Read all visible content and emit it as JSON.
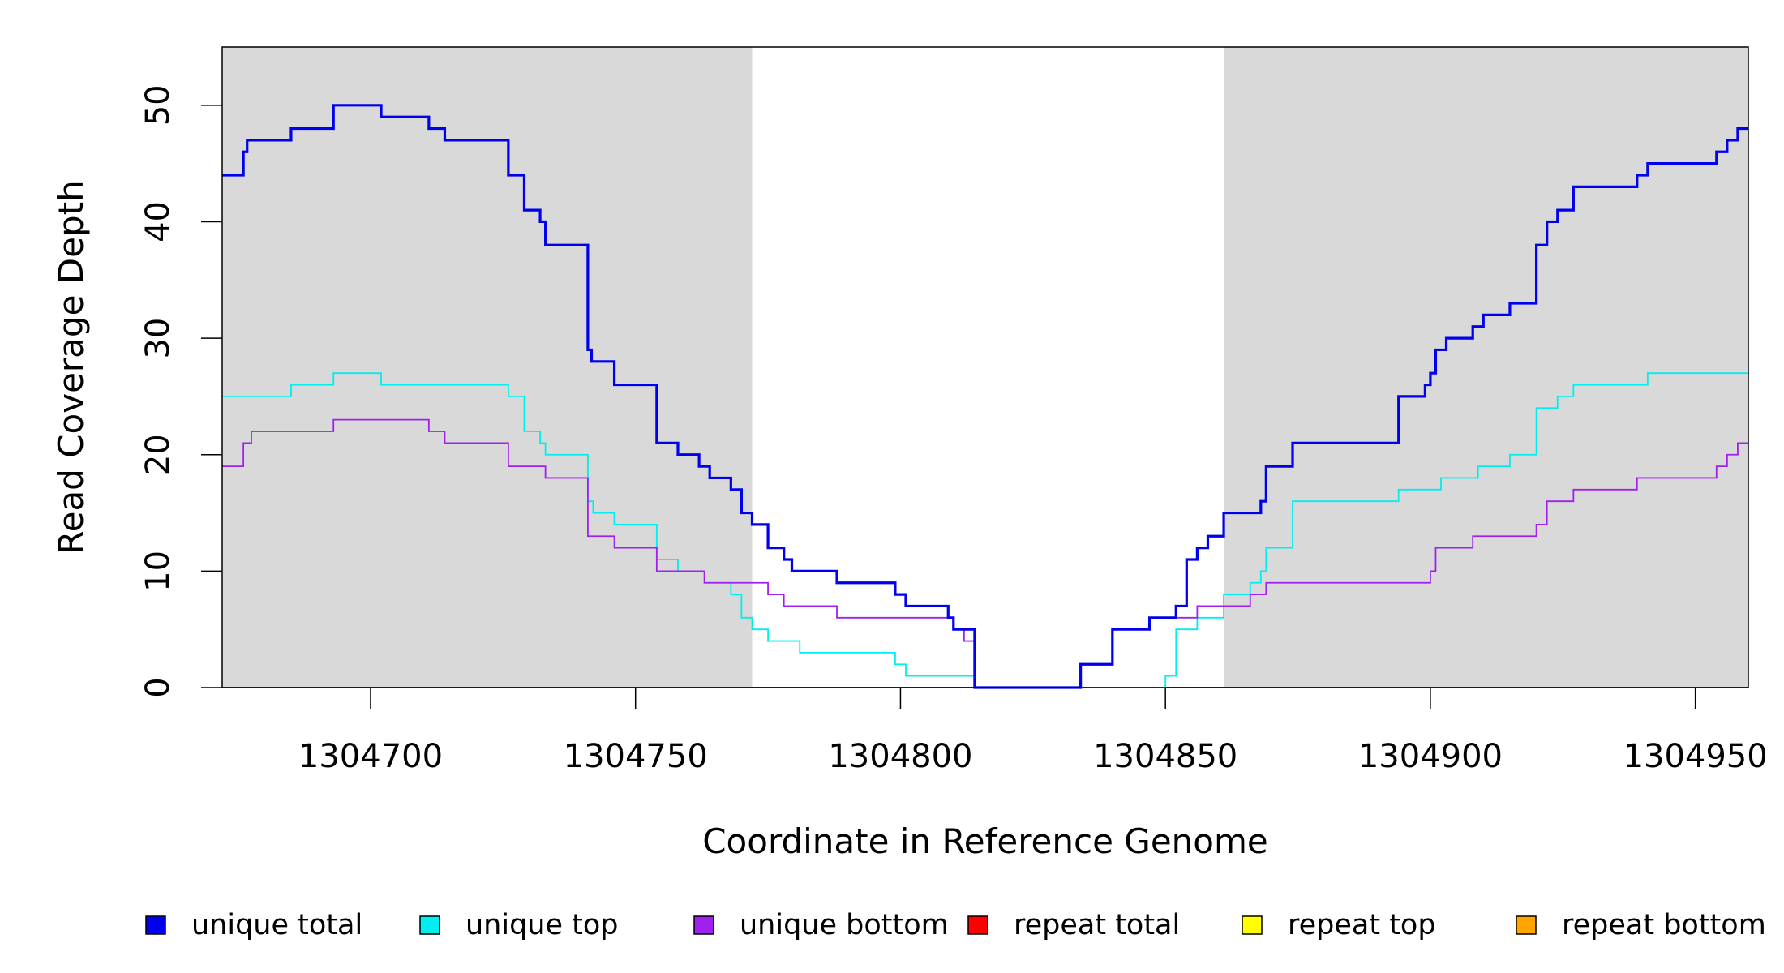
{
  "chart_data": {
    "type": "line",
    "title": "",
    "xlabel": "Coordinate in Reference Genome",
    "ylabel": "Read Coverage Depth",
    "xlim": [
      1304672,
      1304960
    ],
    "ylim": [
      0,
      55
    ],
    "x_ticks": [
      1304700,
      1304750,
      1304800,
      1304850,
      1304900,
      1304950
    ],
    "x_tick_labels": [
      "1304700",
      "1304750",
      "1304800",
      "1304850",
      "1304900",
      "1304950"
    ],
    "y_ticks": [
      0,
      10,
      20,
      30,
      40,
      50
    ],
    "y_tick_labels": [
      "0",
      "10",
      "20",
      "30",
      "40",
      "50"
    ],
    "grid": false,
    "legend_position": "bottom",
    "shaded_regions": [
      {
        "x0": 1304672,
        "x1": 1304772,
        "color": "#d9d9d9"
      },
      {
        "x0": 1304861,
        "x1": 1304960,
        "color": "#d9d9d9"
      }
    ],
    "series": [
      {
        "name": "unique total",
        "color": "#0000ee",
        "emphasis": "thick",
        "x": [
          1304672,
          1304676,
          1304676.7,
          1304677.5,
          1304685,
          1304693,
          1304702,
          1304711,
          1304714,
          1304726,
          1304729,
          1304732,
          1304733,
          1304741,
          1304741.7,
          1304743,
          1304746,
          1304754,
          1304758,
          1304762,
          1304764,
          1304768,
          1304770,
          1304772,
          1304775,
          1304778,
          1304779.5,
          1304781,
          1304788,
          1304799,
          1304801,
          1304807,
          1304809,
          1304810,
          1304814,
          1304834,
          1304840,
          1304847,
          1304852,
          1304854,
          1304856,
          1304858,
          1304861,
          1304866,
          1304868,
          1304869,
          1304874,
          1304894,
          1304899,
          1304900,
          1304901,
          1304903,
          1304908,
          1304910,
          1304915,
          1304920,
          1304922,
          1304924,
          1304927,
          1304939,
          1304941,
          1304954,
          1304956,
          1304958,
          1304960
        ],
        "y": [
          44,
          46,
          47,
          47,
          48,
          50,
          49,
          48,
          47,
          44,
          41,
          40,
          38,
          29,
          28,
          28,
          26,
          21,
          20,
          19,
          18,
          17,
          15,
          14,
          12,
          11,
          10,
          10,
          9,
          8,
          7,
          7,
          6,
          5,
          0,
          2,
          5,
          6,
          7,
          11,
          12,
          13,
          15,
          15,
          16,
          19,
          21,
          25,
          26,
          27,
          29,
          30,
          31,
          32,
          33,
          38,
          40,
          41,
          43,
          44,
          45,
          46,
          47,
          48,
          48
        ]
      },
      {
        "name": "unique top",
        "color": "#00eeee",
        "emphasis": "thin",
        "x": [
          1304672,
          1304685,
          1304693,
          1304702,
          1304726,
          1304729,
          1304732,
          1304733,
          1304741,
          1304742,
          1304746,
          1304754,
          1304758,
          1304763,
          1304768,
          1304770,
          1304772,
          1304775,
          1304781,
          1304799,
          1304801,
          1304814,
          1304850,
          1304852,
          1304856,
          1304861,
          1304866,
          1304868,
          1304869,
          1304874,
          1304894,
          1304902,
          1304909,
          1304915,
          1304920,
          1304924,
          1304927,
          1304941,
          1304960
        ],
        "y": [
          25,
          26,
          27,
          26,
          25,
          22,
          21,
          20,
          16,
          15,
          14,
          11,
          10,
          9,
          8,
          6,
          5,
          4,
          3,
          2,
          1,
          0,
          1,
          5,
          6,
          8,
          9,
          10,
          12,
          16,
          17,
          18,
          19,
          20,
          24,
          25,
          26,
          27,
          27
        ]
      },
      {
        "name": "unique bottom",
        "color": "#a020f0",
        "emphasis": "thin",
        "x": [
          1304672,
          1304676,
          1304676.7,
          1304677.5,
          1304693,
          1304711,
          1304714,
          1304726,
          1304733,
          1304741,
          1304746,
          1304754,
          1304763,
          1304775,
          1304778,
          1304788,
          1304810,
          1304812,
          1304814,
          1304834,
          1304840,
          1304847,
          1304851,
          1304856,
          1304866,
          1304868,
          1304869,
          1304899,
          1304900,
          1304901,
          1304908,
          1304920,
          1304922,
          1304927,
          1304939,
          1304954,
          1304956,
          1304958,
          1304959,
          1304960
        ],
        "y": [
          19,
          21,
          21,
          22,
          23,
          22,
          21,
          19,
          18,
          13,
          12,
          10,
          9,
          8,
          7,
          6,
          5,
          4,
          0,
          2,
          5,
          6,
          6,
          7,
          8,
          8,
          9,
          9,
          10,
          12,
          13,
          14,
          16,
          17,
          18,
          19,
          20,
          21,
          21,
          21
        ]
      },
      {
        "name": "repeat total",
        "color": "#ff0000",
        "emphasis": "thin",
        "x": [
          1304672,
          1304960
        ],
        "y": [
          0,
          0
        ]
      },
      {
        "name": "repeat top",
        "color": "#ffff00",
        "emphasis": "thin",
        "x": [
          1304672,
          1304960
        ],
        "y": [
          0,
          0
        ]
      },
      {
        "name": "repeat bottom",
        "color": "#ffa500",
        "emphasis": "thin",
        "x": [
          1304672,
          1304960
        ],
        "y": [
          0,
          0
        ]
      }
    ],
    "legend": [
      {
        "label": "unique total",
        "color": "#0000ee"
      },
      {
        "label": "unique top",
        "color": "#00eeee"
      },
      {
        "label": "unique bottom",
        "color": "#a020f0"
      },
      {
        "label": "repeat total",
        "color": "#ff0000"
      },
      {
        "label": "repeat top",
        "color": "#ffff00"
      },
      {
        "label": "repeat bottom",
        "color": "#ffa500"
      }
    ]
  }
}
